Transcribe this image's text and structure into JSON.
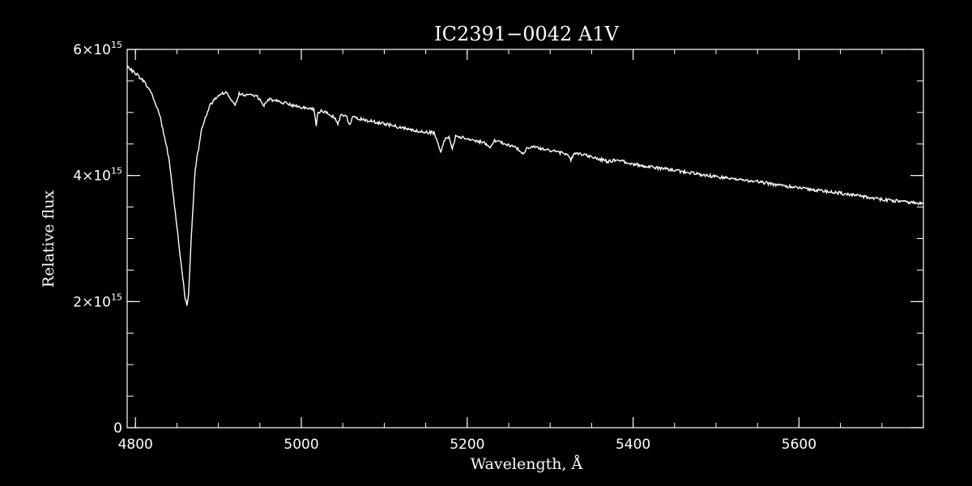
{
  "chart_data": {
    "type": "line",
    "title": "IC2391−0042  A1V",
    "xlabel": "Wavelength, Å",
    "ylabel": "Relative flux",
    "xlim": [
      4790,
      5750
    ],
    "ylim": [
      0,
      6000000000000000.0
    ],
    "grid": false,
    "legend": "none",
    "x_ticks": [
      {
        "value": 4800,
        "label": "4800"
      },
      {
        "value": 5000,
        "label": "5000"
      },
      {
        "value": 5200,
        "label": "5200"
      },
      {
        "value": 5400,
        "label": "5400"
      },
      {
        "value": 5600,
        "label": "5600"
      }
    ],
    "y_ticks": [
      {
        "value": 0,
        "mant": "0",
        "exp": ""
      },
      {
        "value": 2000000000000000.0,
        "mant": "2×10",
        "exp": "15"
      },
      {
        "value": 4000000000000000.0,
        "mant": "4×10",
        "exp": "15"
      },
      {
        "value": 6000000000000000.0,
        "mant": "6×10",
        "exp": "15"
      }
    ],
    "x_minor_step": 50,
    "y_minor_step": 500000000000000.0,
    "series": [
      {
        "color": "#ffffff",
        "x": [
          4790,
          4800,
          4810,
          4820,
          4830,
          4840,
          4850,
          4855,
          4860,
          4862,
          4864,
          4868,
          4872,
          4880,
          4890,
          4900,
          4910,
          4915,
          4920,
          4925,
          4930,
          4940,
          4950,
          4955,
          4960,
          4970,
          4980,
          5000,
          5015,
          5018,
          5020,
          5025,
          5040,
          5044,
          5048,
          5055,
          5058,
          5062,
          5080,
          5100,
          5120,
          5140,
          5160,
          5165,
          5168,
          5172,
          5178,
          5182,
          5186,
          5195,
          5220,
          5228,
          5232,
          5236,
          5260,
          5268,
          5272,
          5280,
          5300,
          5320,
          5325,
          5330,
          5360,
          5370,
          5380,
          5400,
          5450,
          5500,
          5550,
          5600,
          5650,
          5700,
          5750
        ],
        "y": [
          5720000000000000.0,
          5620000000000000.0,
          5500000000000000.0,
          5280000000000000.0,
          4920000000000000.0,
          4300000000000000.0,
          3200000000000000.0,
          2600000000000000.0,
          2050000000000000.0,
          1950000000000000.0,
          2100000000000000.0,
          3200000000000000.0,
          4100000000000000.0,
          4750000000000000.0,
          5120000000000000.0,
          5280000000000000.0,
          5320000000000000.0,
          5220000000000000.0,
          5100000000000000.0,
          5300000000000000.0,
          5270000000000000.0,
          5300000000000000.0,
          5220000000000000.0,
          5100000000000000.0,
          5220000000000000.0,
          5180000000000000.0,
          5150000000000000.0,
          5080000000000000.0,
          5050000000000000.0,
          4800000000000000.0,
          5000000000000000.0,
          5030000000000000.0,
          4920000000000000.0,
          4820000000000000.0,
          4980000000000000.0,
          4920000000000000.0,
          4800000000000000.0,
          4920000000000000.0,
          4870000000000000.0,
          4820000000000000.0,
          4760000000000000.0,
          4700000000000000.0,
          4680000000000000.0,
          4500000000000000.0,
          4350000000000000.0,
          4550000000000000.0,
          4620000000000000.0,
          4420000000000000.0,
          4620000000000000.0,
          4600000000000000.0,
          4520000000000000.0,
          4420000000000000.0,
          4550000000000000.0,
          4550000000000000.0,
          4430000000000000.0,
          4350000000000000.0,
          4440000000000000.0,
          4450000000000000.0,
          4400000000000000.0,
          4340000000000000.0,
          4250000000000000.0,
          4360000000000000.0,
          4260000000000000.0,
          4220000000000000.0,
          4250000000000000.0,
          4180000000000000.0,
          4080000000000000.0,
          3980000000000000.0,
          3900000000000000.0,
          3800000000000000.0,
          3720000000000000.0,
          3620000000000000.0,
          3550000000000000.0
        ]
      }
    ]
  }
}
